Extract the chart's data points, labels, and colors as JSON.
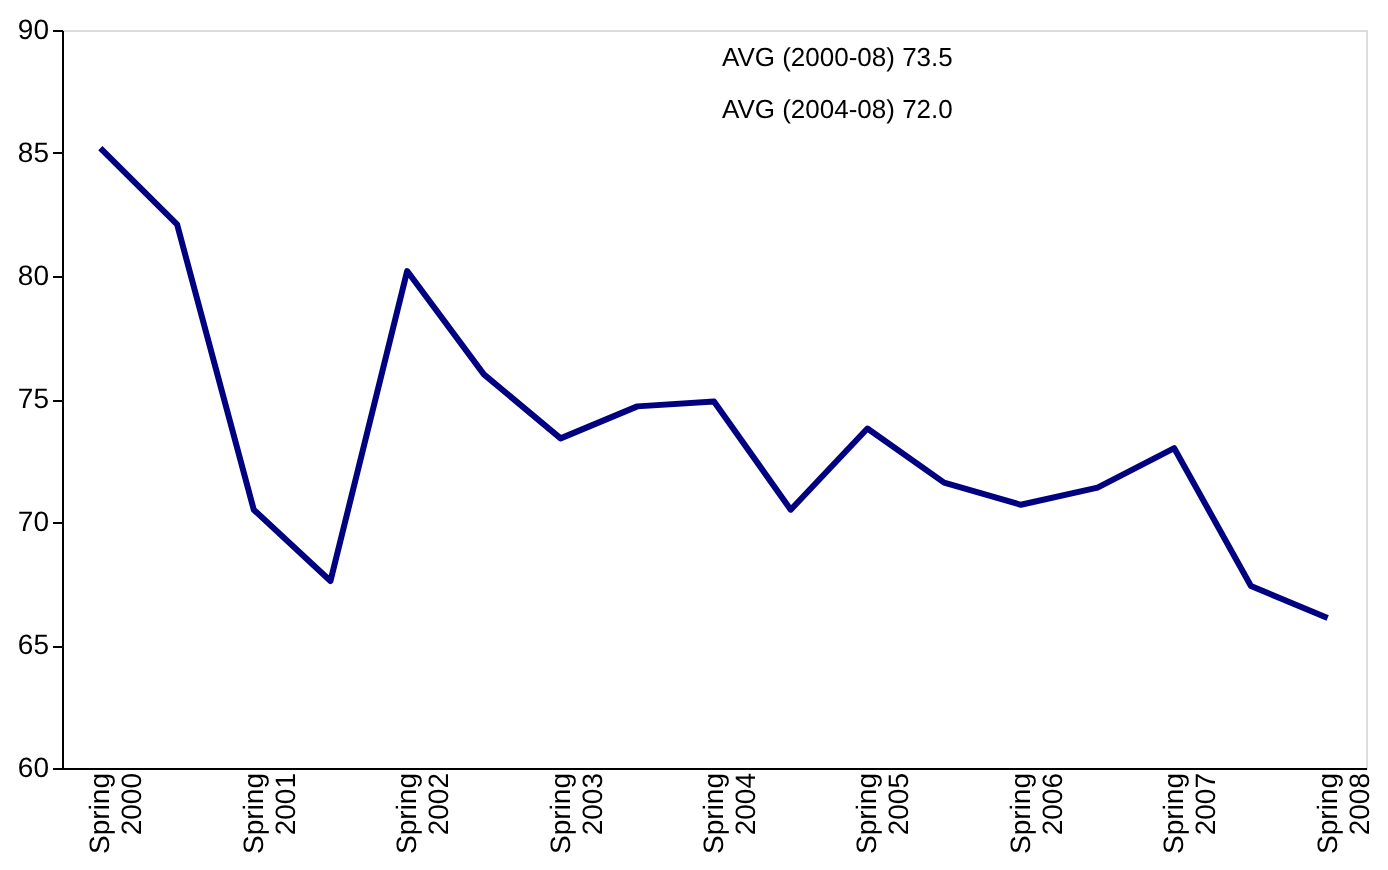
{
  "chart_data": {
    "type": "line",
    "categories": [
      "Spring 2000",
      null,
      "Spring 2001",
      null,
      "Spring 2002",
      null,
      "Spring 2003",
      null,
      "Spring 2004",
      null,
      "Spring 2005",
      null,
      "Spring 2006",
      null,
      "Spring 2007",
      null,
      "Spring 2008"
    ],
    "series": [
      {
        "color": "#000080",
        "values": [
          85.2,
          82.1,
          70.5,
          67.6,
          80.2,
          76.0,
          73.4,
          74.7,
          74.9,
          70.5,
          73.8,
          71.6,
          70.7,
          71.4,
          73.0,
          67.4,
          66.1
        ]
      }
    ],
    "ylim": [
      60,
      90
    ],
    "yticks": [
      60,
      65,
      70,
      75,
      80,
      85,
      90
    ],
    "annotations": [
      "AVG (2000-08) 73.5",
      "AVG (2004-08) 72.0"
    ],
    "grid": false,
    "marker": "none",
    "line_style": "solid"
  }
}
